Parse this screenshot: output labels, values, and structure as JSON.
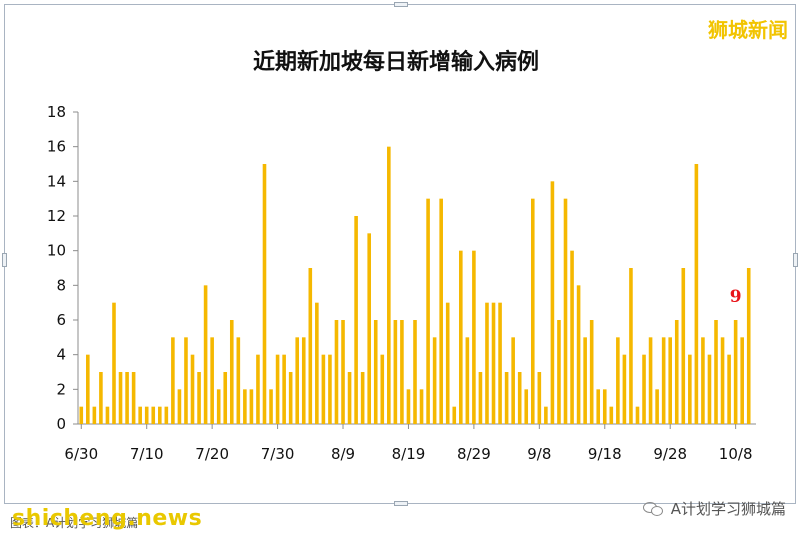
{
  "brand": "狮城新闻",
  "footer": {
    "source_text": "图表：A计划学习狮城篇",
    "watermark": "shicheng.news",
    "account": "A计划学习狮城篇",
    "account_icon": "wechat-icon"
  },
  "colors": {
    "bar": "#f5b800",
    "highlight_label": "#e8141a",
    "axis": "#8c8c8c",
    "grid": "#d9d9d9"
  },
  "chart_data": {
    "type": "bar",
    "title": "近期新加坡每日新增输入病例",
    "xlabel": "",
    "ylabel": "",
    "ylim": [
      0,
      18
    ],
    "y_ticks": [
      0,
      2,
      4,
      6,
      8,
      10,
      12,
      14,
      16,
      18
    ],
    "grid": false,
    "x_start": "6/30",
    "x_tick_labels": [
      "6/30",
      "7/10",
      "7/20",
      "7/30",
      "8/9",
      "8/19",
      "8/29",
      "9/8",
      "9/18",
      "9/28",
      "10/8"
    ],
    "series": [
      {
        "values": [
          1,
          4,
          1,
          3,
          1,
          7,
          3,
          3,
          3,
          1,
          1,
          1,
          1,
          1,
          5,
          2,
          5,
          4,
          3,
          8,
          5,
          2,
          3,
          6,
          5,
          2,
          2,
          4,
          15,
          2,
          4,
          4,
          3,
          5,
          5,
          9,
          7,
          4,
          4,
          6,
          6,
          3,
          12,
          3,
          11,
          6,
          4,
          16,
          6,
          6,
          2,
          6,
          2,
          13,
          5,
          13,
          7,
          1,
          10,
          5,
          10,
          3,
          7,
          7,
          7,
          3,
          5,
          3,
          2,
          13,
          3,
          1,
          14,
          6,
          13,
          10,
          8,
          5,
          6,
          2,
          2,
          1,
          5,
          4,
          9,
          1,
          4,
          5,
          2,
          5,
          5,
          6,
          9,
          4,
          15,
          5,
          4,
          6,
          5,
          4,
          6,
          5,
          9
        ]
      }
    ],
    "annotations": [
      {
        "date": "10/8",
        "text": "9"
      }
    ]
  }
}
